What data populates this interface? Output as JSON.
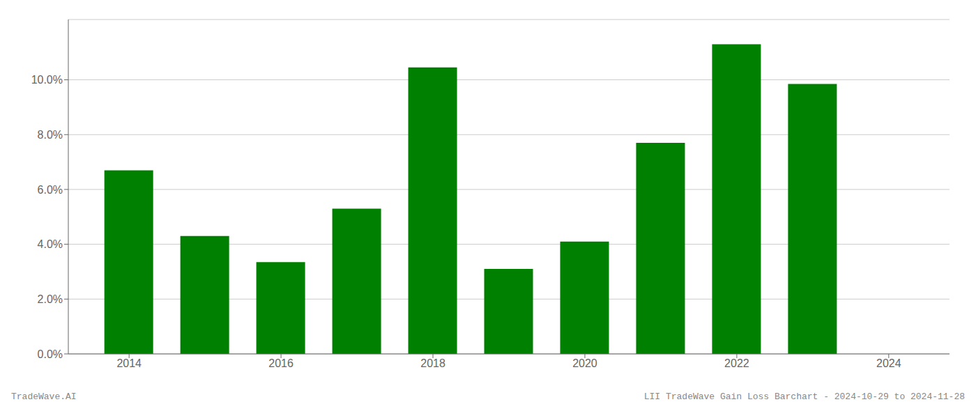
{
  "chart_data": {
    "type": "bar",
    "x": [
      2014,
      2015,
      2016,
      2017,
      2018,
      2019,
      2020,
      2021,
      2022,
      2023
    ],
    "values": [
      0.067,
      0.043,
      0.0335,
      0.053,
      0.1045,
      0.031,
      0.041,
      0.077,
      0.113,
      0.0985
    ],
    "color": "#008000",
    "xlim": [
      2013.2,
      2024.8
    ],
    "xticks": [
      2014,
      2016,
      2018,
      2020,
      2022,
      2024
    ],
    "ylim": [
      0,
      0.122
    ],
    "yticks": [
      {
        "value": 0.0,
        "label": "0.0%"
      },
      {
        "value": 0.02,
        "label": "2.0%"
      },
      {
        "value": 0.04,
        "label": "4.0%"
      },
      {
        "value": 0.06,
        "label": "6.0%"
      },
      {
        "value": 0.08,
        "label": "8.0%"
      },
      {
        "value": 0.1,
        "label": "10.0%"
      }
    ],
    "grid": true,
    "annotations": [
      "TradeWave.AI",
      "LII TradeWave Gain Loss Barchart - 2024-10-29 to 2024-11-28"
    ]
  }
}
